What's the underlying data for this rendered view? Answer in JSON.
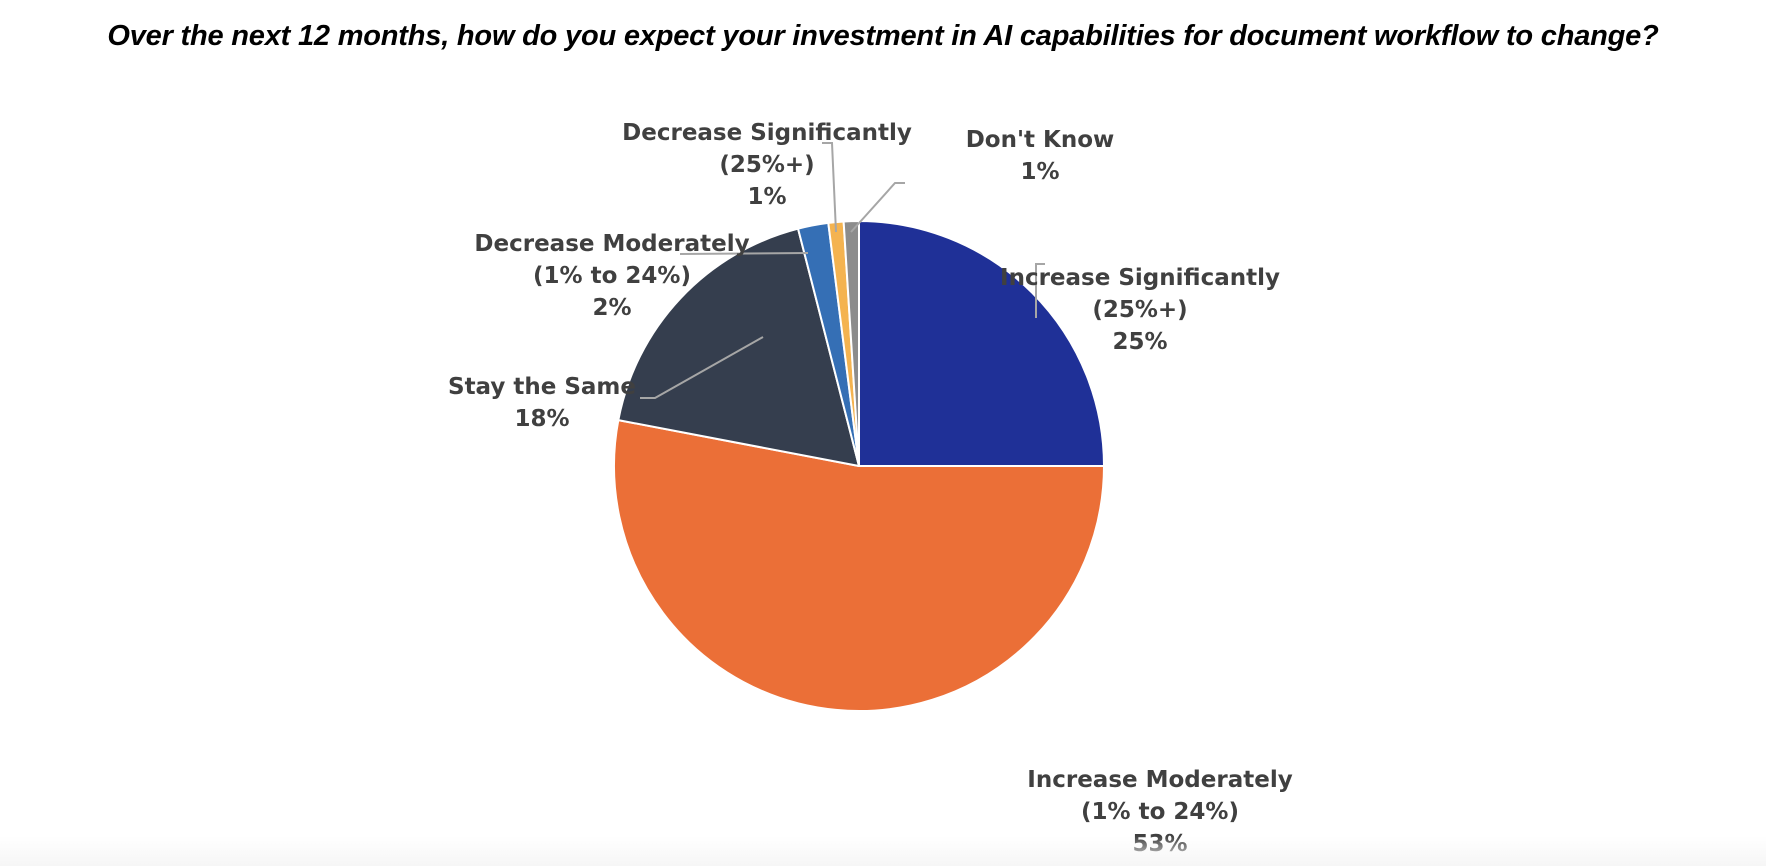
{
  "chart_data": {
    "type": "pie",
    "title": "Over the next 12 months, how do you expect your investment in AI capabilities for document workflow to change?",
    "start_angle_deg": 0,
    "direction": "clockwise",
    "legend": "none (data labels with leader lines)",
    "slices": [
      {
        "name": "Increase Significantly (25%+)",
        "line1": "Increase Significantly",
        "line2": "(25%+)",
        "value": 25,
        "value_label": "25%",
        "color": "#1F3097"
      },
      {
        "name": "Increase Moderately (1% to 24%)",
        "line1": "Increase Moderately",
        "line2": "(1% to 24%)",
        "value": 53,
        "value_label": "53%",
        "color": "#EB6F37"
      },
      {
        "name": "Stay the Same",
        "line1": "Stay the Same",
        "line2": "",
        "value": 18,
        "value_label": "18%",
        "color": "#353E4E"
      },
      {
        "name": "Decrease Moderately (1% to 24%)",
        "line1": "Decrease Moderately",
        "line2": "(1% to 24%)",
        "value": 2,
        "value_label": "2%",
        "color": "#356FB5"
      },
      {
        "name": "Decrease Significantly (25%+)",
        "line1": "Decrease Significantly",
        "line2": "(25%+)",
        "value": 1,
        "value_label": "1%",
        "color": "#F4B350"
      },
      {
        "name": "Don't Know",
        "line1": "Don't Know",
        "line2": "",
        "value": 1,
        "value_label": "1%",
        "color": "#8C8C8C"
      }
    ]
  },
  "colors": {
    "label_text": "#404040",
    "leader_line": "#A6A6A6",
    "slice_border": "#FFFFFF"
  }
}
